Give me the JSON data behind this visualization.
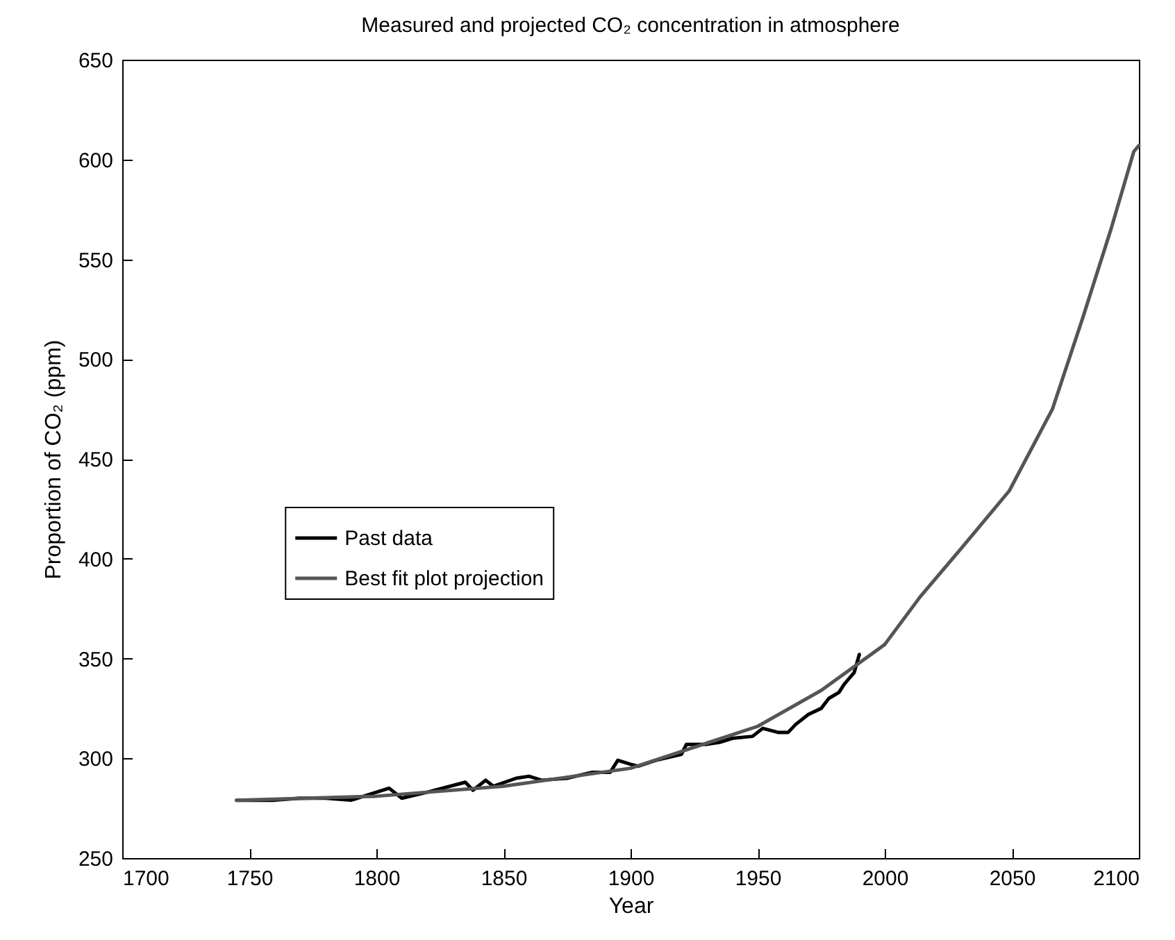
{
  "chart_data": {
    "type": "line",
    "title": "Measured and projected CO₂ concentration in atmosphere",
    "xlabel": "Year",
    "ylabel": "Proportion of CO₂ (ppm)",
    "xlim": [
      1700,
      2100
    ],
    "xticks": [
      1700,
      1750,
      1800,
      1850,
      1900,
      1950,
      2000,
      2050,
      2100
    ],
    "ylim": [
      250,
      650
    ],
    "yticks": [
      250,
      300,
      350,
      400,
      450,
      500,
      550,
      600,
      650
    ],
    "legend": "left",
    "grid": false,
    "line_style": "solid",
    "marker": "none",
    "series": [
      {
        "name": "Past data",
        "color": "#000000",
        "x": [
          1745,
          1760,
          1770,
          1780,
          1790,
          1800,
          1805,
          1810,
          1820,
          1835,
          1838,
          1843,
          1846,
          1855,
          1860,
          1865,
          1875,
          1885,
          1892,
          1895,
          1900,
          1903,
          1910,
          1920,
          1922,
          1930,
          1935,
          1940,
          1948,
          1952,
          1958,
          1962,
          1965,
          1970,
          1975,
          1978,
          1982,
          1984,
          1986,
          1988,
          1990
        ],
        "values": [
          279,
          279,
          280,
          280,
          279,
          283,
          285,
          280,
          283,
          288,
          284,
          289,
          286,
          290,
          291,
          289,
          290,
          293,
          293,
          299,
          297,
          296,
          299,
          302,
          307,
          307,
          308,
          310,
          311,
          315,
          313,
          313,
          317,
          322,
          325,
          330,
          333,
          337,
          340,
          343,
          352
        ]
      },
      {
        "name": "Best fit plot projection",
        "color": "#555555",
        "x": [
          1745,
          1800,
          1850,
          1900,
          1950,
          1975,
          2000,
          2014,
          2030,
          2049,
          2066,
          2078,
          2089,
          2098,
          2100
        ],
        "values": [
          279,
          281,
          286,
          295,
          316,
          334,
          357,
          381,
          405,
          434,
          475,
          521,
          565,
          604,
          607
        ]
      }
    ]
  }
}
